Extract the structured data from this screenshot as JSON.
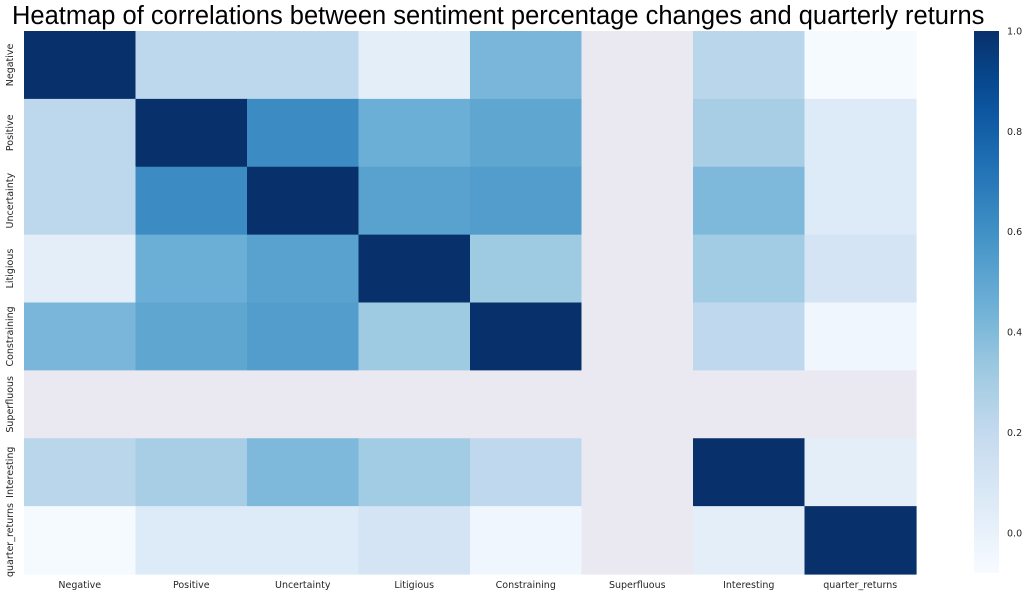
{
  "chart_data": {
    "type": "heatmap",
    "title": "Heatmap of correlations between sentiment percentage changes and quarterly returns",
    "xlabel": "",
    "ylabel": "",
    "x_categories": [
      "Negative",
      "Positive",
      "Uncertainty",
      "Litigious",
      "Constraining",
      "Superfluous",
      "Interesting",
      "quarter_returns"
    ],
    "y_categories": [
      "Negative",
      "Positive",
      "Uncertainty",
      "Litigious",
      "Constraining",
      "Superfluous",
      "Interesting",
      "quarter_returns"
    ],
    "values": [
      [
        1.0,
        0.22,
        0.22,
        0.03,
        0.42,
        null,
        0.23,
        -0.07
      ],
      [
        0.22,
        1.0,
        0.62,
        0.46,
        0.5,
        null,
        0.29,
        0.06
      ],
      [
        0.22,
        0.62,
        1.0,
        0.52,
        0.54,
        null,
        0.41,
        0.06
      ],
      [
        0.03,
        0.46,
        0.52,
        1.0,
        0.32,
        null,
        0.31,
        0.11
      ],
      [
        0.42,
        0.5,
        0.54,
        0.32,
        1.0,
        null,
        0.21,
        -0.04
      ],
      [
        null,
        null,
        null,
        null,
        null,
        null,
        null,
        null
      ],
      [
        0.23,
        0.29,
        0.41,
        0.31,
        0.21,
        null,
        1.0,
        0.03
      ],
      [
        -0.07,
        0.06,
        0.06,
        0.11,
        -0.04,
        null,
        0.03,
        1.0
      ]
    ],
    "missing_color": "#eae9f2",
    "colormap": "Blues",
    "vmin": -0.08,
    "vmax": 1.0,
    "colorbar_ticks": [
      "0.0",
      "0.2",
      "0.4",
      "0.6",
      "0.8",
      "1.0"
    ],
    "colorbar_tick_values": [
      0.0,
      0.2,
      0.4,
      0.6,
      0.8,
      1.0
    ]
  }
}
